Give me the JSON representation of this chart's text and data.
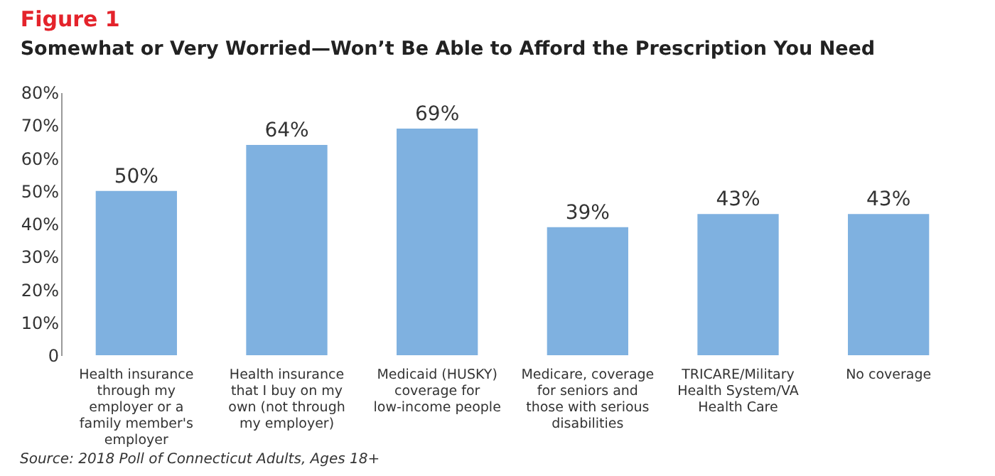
{
  "chart_data": {
    "type": "bar",
    "title": "Figure 1",
    "subtitle": "Somewhat or Very Worried—Won’t Be Able to Afford the Prescription You Need",
    "categories": [
      "Health insurance through my employer or a family member's employer",
      "Health insurance that I buy on my own (not through my employer)",
      "Medicaid (HUSKY) coverage for low-income people",
      "Medicare, coverage for seniors and those with serious disabilities",
      "TRICARE/Military Health System/VA Health Care",
      "No coverage"
    ],
    "values": [
      50,
      64,
      69,
      39,
      43,
      43
    ],
    "color": "#7fb1e0",
    "ylim": [
      0,
      80
    ],
    "yticks": [
      {
        "value": 0,
        "label": "0"
      },
      {
        "value": 10,
        "label": "10%"
      },
      {
        "value": 20,
        "label": "20%"
      },
      {
        "value": 30,
        "label": "30%"
      },
      {
        "value": 40,
        "label": "40%"
      },
      {
        "value": 50,
        "label": "50%"
      },
      {
        "value": 60,
        "label": "60%"
      },
      {
        "value": 70,
        "label": "70%"
      },
      {
        "value": 80,
        "label": "80%"
      }
    ],
    "value_labels": [
      "50%",
      "64%",
      "69%",
      "39%",
      "43%",
      "43%"
    ],
    "grid": false,
    "annotations": [
      "Source: 2018 Poll of Connecticut Adults, Ages 18+"
    ]
  }
}
